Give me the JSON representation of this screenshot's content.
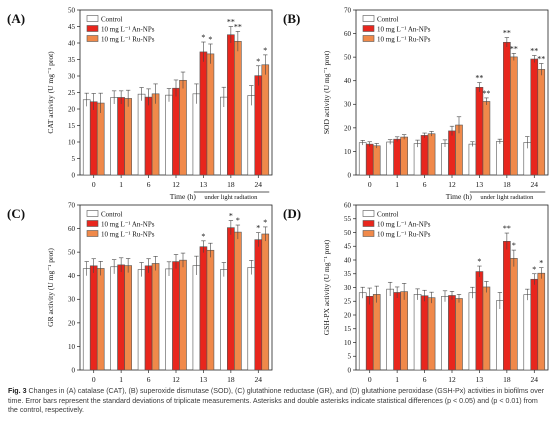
{
  "figure": {
    "caption_label": "Fig. 3",
    "caption_text": "Changes in (A) catalase (CAT), (B) superoxide dismutase (SOD), (C) glutathione reductase (GR), and (D) glutathione peroxidase (GSH-Px) activities in biofilms over time. Error bars represent the standard deviations of triplicate measurements. Asterisks and double asterisks indicate statistical differences (p < 0.05) and (p < 0.01) from the control, respectively.",
    "colors": {
      "control": "#ffffff",
      "an": "#e8261d",
      "ru": "#f0894a"
    }
  },
  "chart_data": [
    {
      "panel": "(A)",
      "type": "bar",
      "ylabel": "CAT activity (U mg⁻¹ prot)",
      "xlabel": "Time (h)",
      "note": "under light radiation",
      "categories": [
        "0",
        "1",
        "6",
        "12",
        "13",
        "18",
        "24"
      ],
      "ylim": [
        0,
        50
      ],
      "yticks": [
        0,
        5,
        10,
        15,
        20,
        25,
        30,
        35,
        40,
        45,
        50
      ],
      "series": [
        {
          "name": "Control",
          "values": [
            22.8,
            23.5,
            24.5,
            24.2,
            24.6,
            23.6,
            24.1
          ],
          "errors": [
            2,
            2,
            2,
            2,
            3,
            3,
            3
          ]
        },
        {
          "name": "10 mg L⁻¹ An-NPs",
          "values": [
            22.2,
            23.5,
            23.6,
            26.3,
            37.3,
            42.5,
            30.1
          ],
          "errors": [
            2.5,
            2,
            2.5,
            2.5,
            3,
            2.5,
            3
          ]
        },
        {
          "name": "10 mg L⁻¹ Ru-NPs",
          "values": [
            21.8,
            23.2,
            24.6,
            28.7,
            36.7,
            40.5,
            33.4
          ],
          "errors": [
            3,
            2.5,
            3,
            2.5,
            3,
            3,
            3
          ]
        }
      ],
      "significance": [
        [
          "",
          "",
          ""
        ],
        [
          "",
          "",
          ""
        ],
        [
          "",
          "",
          ""
        ],
        [
          "",
          "",
          ""
        ],
        [
          "",
          "*",
          "*"
        ],
        [
          "",
          "**",
          "**"
        ],
        [
          "",
          "*",
          "*"
        ]
      ]
    },
    {
      "panel": "(B)",
      "type": "bar",
      "ylabel": "SOD activity (U mg⁻¹ prot)",
      "xlabel": "Time (h)",
      "note": "under light radiation",
      "categories": [
        "0",
        "1",
        "6",
        "12",
        "13",
        "18",
        "24"
      ],
      "ylim": [
        0,
        70
      ],
      "yticks": [
        0,
        10,
        20,
        30,
        40,
        50,
        60,
        70
      ],
      "series": [
        {
          "name": "Control",
          "values": [
            13.7,
            14,
            13.3,
            13.4,
            13.1,
            14.2,
            13.8
          ],
          "errors": [
            1,
            1,
            1.5,
            1.5,
            1,
            1,
            2.5
          ]
        },
        {
          "name": "10 mg L⁻¹ An-NPs",
          "values": [
            13.1,
            15.2,
            16.8,
            18.7,
            37.2,
            56.3,
            49.2
          ],
          "errors": [
            1,
            1,
            1,
            2,
            2,
            2,
            1.5
          ]
        },
        {
          "name": "10 mg L⁻¹ Ru-NPs",
          "values": [
            12.4,
            16.1,
            17.5,
            21.2,
            31.2,
            50.1,
            44.8
          ],
          "errors": [
            1,
            1,
            1,
            3.5,
            1.5,
            1.5,
            2.5
          ]
        }
      ],
      "significance": [
        [
          "",
          "",
          ""
        ],
        [
          "",
          "",
          ""
        ],
        [
          "",
          "",
          ""
        ],
        [
          "",
          "",
          ""
        ],
        [
          "",
          "**",
          "**"
        ],
        [
          "",
          "**",
          "**"
        ],
        [
          "",
          "**",
          "**"
        ]
      ]
    },
    {
      "panel": "(C)",
      "type": "bar",
      "ylabel": "GR activity (U mg⁻¹ prot)",
      "xlabel": "Time (h)",
      "note": "under light radiation",
      "categories": [
        "0",
        "1",
        "6",
        "12",
        "13",
        "18",
        "24"
      ],
      "ylim": [
        0,
        70
      ],
      "yticks": [
        0,
        10,
        20,
        30,
        40,
        50,
        60,
        70
      ],
      "series": [
        {
          "name": "Control",
          "values": [
            43,
            43.8,
            42.6,
            42.9,
            44.3,
            42.6,
            43.5
          ],
          "errors": [
            3,
            3,
            3,
            3,
            4,
            3,
            3
          ]
        },
        {
          "name": "10 mg L⁻¹ An-NPs",
          "values": [
            44.2,
            44.6,
            44.2,
            46,
            52.3,
            60.4,
            55.3
          ],
          "errors": [
            3,
            3,
            3,
            3,
            2.5,
            3,
            3
          ]
        },
        {
          "name": "10 mg L⁻¹ Ru-NPs",
          "values": [
            43.1,
            44.3,
            45.2,
            46.6,
            50.8,
            58.5,
            57.7
          ],
          "errors": [
            3,
            3,
            3,
            3,
            3,
            3,
            3
          ]
        }
      ],
      "significance": [
        [
          "",
          "",
          ""
        ],
        [
          "",
          "",
          ""
        ],
        [
          "",
          "",
          ""
        ],
        [
          "",
          "",
          ""
        ],
        [
          "",
          "*",
          ""
        ],
        [
          "",
          "*",
          "*"
        ],
        [
          "",
          "*",
          "*"
        ]
      ]
    },
    {
      "panel": "(D)",
      "type": "bar",
      "ylabel": "GSH-PX activity (U mg⁻¹ prot)",
      "xlabel": "Time (h)",
      "note": "under light radiation",
      "categories": [
        "0",
        "1",
        "6",
        "12",
        "13",
        "18",
        "24"
      ],
      "ylim": [
        0,
        60
      ],
      "yticks": [
        0,
        5,
        10,
        15,
        20,
        25,
        30,
        35,
        40,
        45,
        50,
        55,
        60
      ],
      "series": [
        {
          "name": "Control",
          "values": [
            28.1,
            29.4,
            27.5,
            26.8,
            28.1,
            25.2,
            27.4
          ],
          "errors": [
            2,
            2.5,
            2,
            2,
            2,
            3,
            2
          ]
        },
        {
          "name": "10 mg L⁻¹ An-NPs",
          "values": [
            26.8,
            28.2,
            27,
            27.1,
            35.8,
            46.8,
            33
          ],
          "errors": [
            3,
            2,
            2,
            1.5,
            2,
            3,
            2
          ]
        },
        {
          "name": "10 mg L⁻¹ Ru-NPs",
          "values": [
            27.5,
            28.5,
            26.3,
            26,
            30.2,
            40.6,
            35.2
          ],
          "errors": [
            3,
            3,
            2,
            1.5,
            2,
            3,
            2
          ]
        }
      ],
      "significance": [
        [
          "",
          "",
          ""
        ],
        [
          "",
          "",
          ""
        ],
        [
          "",
          "",
          ""
        ],
        [
          "",
          "",
          ""
        ],
        [
          "",
          "*",
          ""
        ],
        [
          "",
          "**",
          "*"
        ],
        [
          "",
          "*",
          "*"
        ]
      ]
    }
  ]
}
